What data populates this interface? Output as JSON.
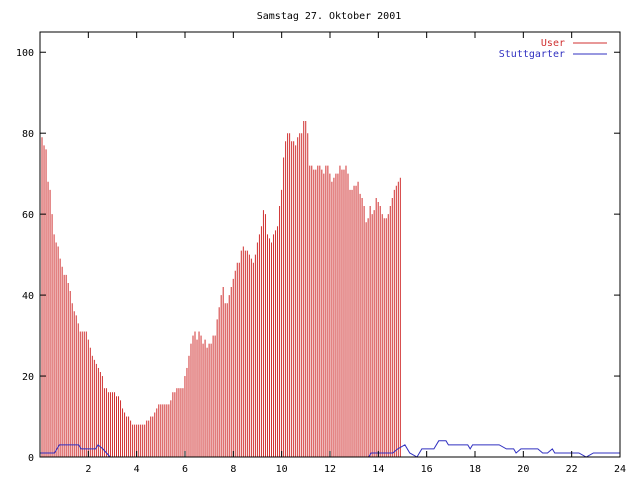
{
  "chart_data": {
    "type": "bar",
    "title": "Samstag 27. Oktober 2001",
    "xlabel": "",
    "ylabel": "",
    "xlim": [
      0,
      24
    ],
    "ylim": [
      0,
      105
    ],
    "x_ticks": [
      2,
      4,
      6,
      8,
      10,
      12,
      14,
      16,
      18,
      20,
      22,
      24
    ],
    "y_ticks": [
      0,
      20,
      40,
      60,
      80,
      100
    ],
    "grid": false,
    "legend_position": "top-right",
    "series": [
      {
        "name": "User",
        "type": "impulse",
        "color": "#d03030",
        "x_start": 0,
        "x_step": 0.0833,
        "values": [
          77,
          79,
          77,
          76,
          68,
          66,
          60,
          55,
          53,
          52,
          49,
          47,
          45,
          45,
          43,
          41,
          38,
          36,
          35,
          33,
          31,
          31,
          31,
          31,
          29,
          27,
          25,
          24,
          23,
          22,
          21,
          20,
          17,
          17,
          16,
          16,
          16,
          16,
          15,
          15,
          14,
          12,
          11,
          10,
          10,
          9,
          8,
          8,
          8,
          8,
          8,
          8,
          8,
          9,
          9,
          10,
          10,
          11,
          12,
          13,
          13,
          13,
          13,
          13,
          13,
          14,
          16,
          16,
          17,
          17,
          17,
          17,
          20,
          22,
          25,
          28,
          30,
          31,
          29,
          31,
          30,
          28,
          29,
          27,
          28,
          28,
          30,
          30,
          34,
          37,
          40,
          42,
          38,
          38,
          40,
          42,
          44,
          46,
          48,
          48,
          51,
          52,
          51,
          51,
          50,
          49,
          48,
          50,
          53,
          55,
          57,
          61,
          60,
          55,
          54,
          53,
          55,
          56,
          57,
          62,
          66,
          74,
          78,
          80,
          80,
          78,
          78,
          77,
          79,
          80,
          80,
          83,
          83,
          80,
          72,
          72,
          71,
          71,
          72,
          72,
          71,
          70,
          72,
          72,
          70,
          68,
          69,
          70,
          70,
          72,
          71,
          71,
          72,
          70,
          66,
          66,
          67,
          67,
          68,
          65,
          64,
          62,
          58,
          59,
          62,
          60,
          61,
          64,
          63,
          62,
          60,
          59,
          59,
          60,
          62,
          64,
          66,
          67,
          68,
          69
        ]
      },
      {
        "name": "Stuttgarter",
        "type": "line",
        "color": "#3030c0",
        "points": [
          [
            0,
            1
          ],
          [
            0.6,
            1
          ],
          [
            0.8,
            3
          ],
          [
            1.6,
            3
          ],
          [
            1.7,
            2
          ],
          [
            2.3,
            2
          ],
          [
            2.4,
            3
          ],
          [
            2.6,
            2
          ],
          [
            2.9,
            0
          ],
          [
            13.6,
            0
          ],
          [
            13.7,
            1
          ],
          [
            14.6,
            1
          ],
          [
            14.8,
            2
          ],
          [
            15.1,
            3
          ],
          [
            15.3,
            1
          ],
          [
            15.6,
            0
          ],
          [
            15.8,
            2
          ],
          [
            16.3,
            2
          ],
          [
            16.5,
            4
          ],
          [
            16.8,
            4
          ],
          [
            16.9,
            3
          ],
          [
            17.7,
            3
          ],
          [
            17.8,
            2
          ],
          [
            17.9,
            3
          ],
          [
            19.0,
            3
          ],
          [
            19.3,
            2
          ],
          [
            19.6,
            2
          ],
          [
            19.7,
            1
          ],
          [
            19.9,
            2
          ],
          [
            20.6,
            2
          ],
          [
            20.8,
            1
          ],
          [
            21.0,
            1
          ],
          [
            21.2,
            2
          ],
          [
            21.3,
            1
          ],
          [
            22.3,
            1
          ],
          [
            22.6,
            0
          ],
          [
            22.9,
            1
          ],
          [
            24,
            1
          ]
        ]
      }
    ]
  }
}
